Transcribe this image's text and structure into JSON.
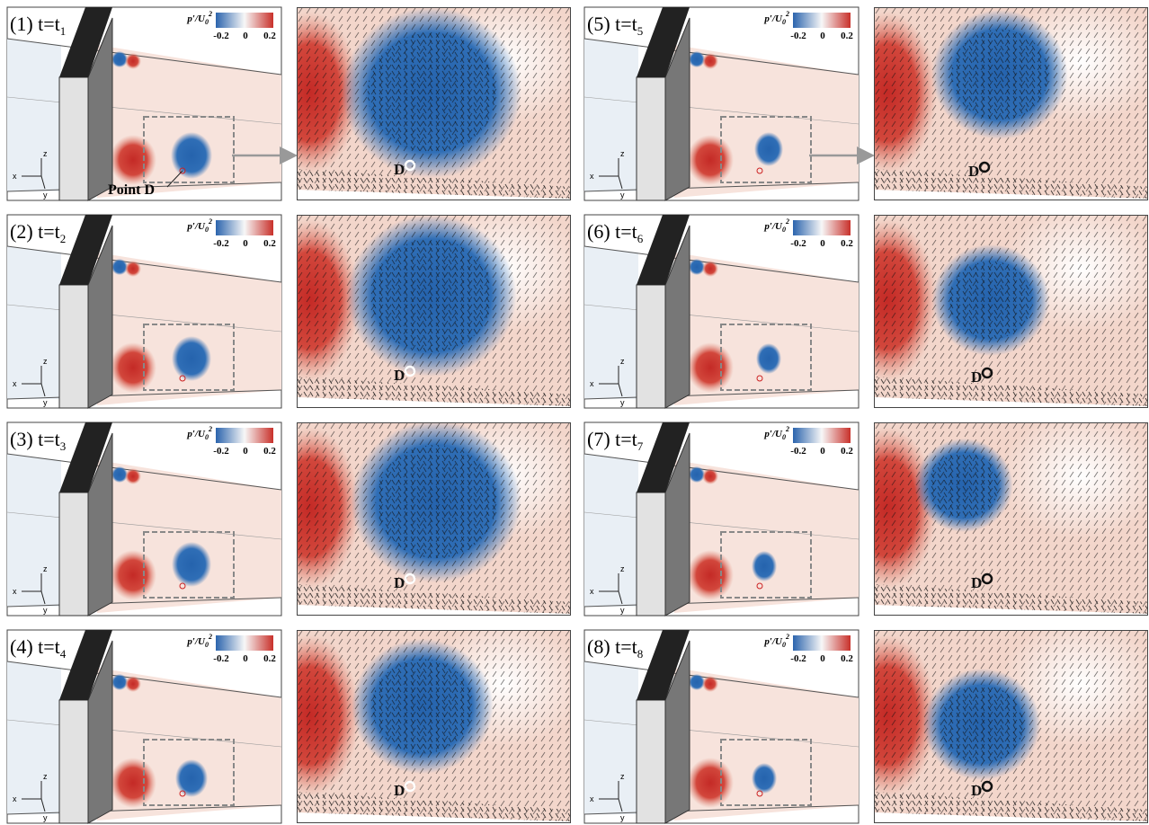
{
  "colorbar": {
    "label": "p′/U",
    "sub": "0",
    "sup": "2",
    "ticks": [
      "-0.2",
      "0",
      "0.2"
    ]
  },
  "axis_labels": {
    "x": "x",
    "y": "y",
    "z": "z"
  },
  "point_label": "Point D",
  "panels": [
    {
      "label": "(1) t=t",
      "sub": "1",
      "marker": "D"
    },
    {
      "label": "(2) t=t",
      "sub": "2",
      "marker": "D"
    },
    {
      "label": "(3) t=t",
      "sub": "3",
      "marker": "D"
    },
    {
      "label": "(4) t=t",
      "sub": "4",
      "marker": "D"
    },
    {
      "label": "(5) t=t",
      "sub": "5",
      "marker": "D"
    },
    {
      "label": "(6) t=t",
      "sub": "6",
      "marker": "D"
    },
    {
      "label": "(7) t=t",
      "sub": "7",
      "marker": "D"
    },
    {
      "label": "(8) t=t",
      "sub": "8",
      "marker": "D"
    }
  ]
}
